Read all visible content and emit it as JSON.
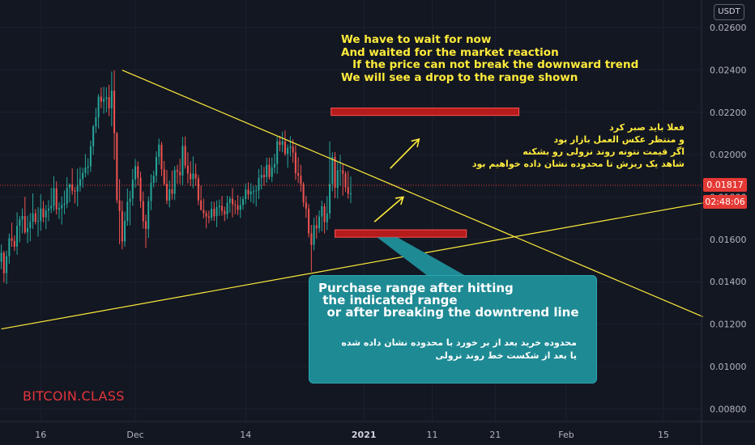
{
  "quote_currency": "USDT",
  "watermark": "BITCOIN.CLASS",
  "last_price": "0.01817",
  "countdown": "02:48:06",
  "notes": {
    "english": "We have to wait for now\nAnd waited for the market reaction\n   If the price can not break the downward trend\nWe will see a drop to the range shown",
    "persian": "فعلا باید صبر کرد\nو منتظر عکس العمل بازار بود\nاگر قیمت نتونه روند نزولی رو بشکنه\nشاهد یک ریزش تا محدوده نشان داده خواهیم بود",
    "callout_english": "Purchase range after hitting\n the indicated range\n  or after breaking the downtrend line",
    "callout_persian": "محدوده خرید بعد از بر خورد با محدوده نشان داده شده\nیا بعد از شکست خط روند نزولی"
  },
  "chart_data": {
    "type": "candlestick",
    "price_axis": {
      "range": [
        0.0074,
        0.0273
      ],
      "ticks": [
        "0.00800",
        "0.01000",
        "0.01200",
        "0.01400",
        "0.01600",
        "0.01800",
        "0.02000",
        "0.02200",
        "0.02400",
        "0.02600"
      ]
    },
    "time_axis": {
      "labels": [
        {
          "text": "16",
          "bar": 15
        },
        {
          "text": "Dec",
          "bar": 51
        },
        {
          "text": "14",
          "bar": 93
        },
        {
          "text": "2021",
          "bar": 138
        },
        {
          "text": "11",
          "bar": 164
        },
        {
          "text": "21",
          "bar": 188
        },
        {
          "text": "Feb",
          "bar": 215
        },
        {
          "text": "15",
          "bar": 252
        }
      ],
      "bar_count_visible": 267,
      "last_bar": 133
    },
    "colors": {
      "up": "#26a69a",
      "down": "#ef5350",
      "trendline": "#ffeb3b",
      "zone_fill": "#b71c1c",
      "zone_border": "#ff5252",
      "arrow": "#ffeb3b",
      "current_price_line": "#e53935"
    },
    "candles": [
      [
        0.01494,
        0.01576,
        0.01459,
        0.01537
      ],
      [
        0.01537,
        0.01546,
        0.01396,
        0.0144
      ],
      [
        0.0144,
        0.01547,
        0.01389,
        0.01521
      ],
      [
        0.01521,
        0.01628,
        0.01485,
        0.01605
      ],
      [
        0.01605,
        0.01679,
        0.01565,
        0.01593
      ],
      [
        0.01593,
        0.01618,
        0.01545,
        0.01565
      ],
      [
        0.01565,
        0.01728,
        0.01528,
        0.01664
      ],
      [
        0.01664,
        0.0171,
        0.01586,
        0.01694
      ],
      [
        0.01694,
        0.01746,
        0.01628,
        0.0171
      ],
      [
        0.0171,
        0.01801,
        0.01625,
        0.01633
      ],
      [
        0.01633,
        0.01712,
        0.01582,
        0.01654
      ],
      [
        0.01654,
        0.01724,
        0.01591,
        0.01683
      ],
      [
        0.01683,
        0.01817,
        0.01649,
        0.01723
      ],
      [
        0.01723,
        0.01744,
        0.01671,
        0.01683
      ],
      [
        0.01683,
        0.01752,
        0.01613,
        0.01686
      ],
      [
        0.01686,
        0.01813,
        0.01641,
        0.01746
      ],
      [
        0.01746,
        0.01781,
        0.0168,
        0.01704
      ],
      [
        0.01704,
        0.01762,
        0.01648,
        0.01736
      ],
      [
        0.01736,
        0.01785,
        0.01686,
        0.01745
      ],
      [
        0.01745,
        0.01844,
        0.01724,
        0.01758
      ],
      [
        0.01758,
        0.01898,
        0.01733,
        0.01841
      ],
      [
        0.01841,
        0.01874,
        0.01717,
        0.01741
      ],
      [
        0.01741,
        0.01776,
        0.01696,
        0.01747
      ],
      [
        0.01747,
        0.01803,
        0.0167,
        0.01762
      ],
      [
        0.01762,
        0.0183,
        0.01719,
        0.01768
      ],
      [
        0.01768,
        0.01894,
        0.01747,
        0.01843
      ],
      [
        0.01843,
        0.01865,
        0.01775,
        0.01858
      ],
      [
        0.01858,
        0.01935,
        0.0181,
        0.01829
      ],
      [
        0.01829,
        0.01847,
        0.0177,
        0.01826
      ],
      [
        0.01826,
        0.01934,
        0.01755,
        0.01852
      ],
      [
        0.01852,
        0.01941,
        0.01826,
        0.01885
      ],
      [
        0.01885,
        0.01938,
        0.01844,
        0.01913
      ],
      [
        0.01913,
        0.02003,
        0.01893,
        0.01939
      ],
      [
        0.01939,
        0.01983,
        0.01904,
        0.01945
      ],
      [
        0.01945,
        0.02067,
        0.01918,
        0.02039
      ],
      [
        0.02039,
        0.02141,
        0.01999,
        0.02133
      ],
      [
        0.02133,
        0.02221,
        0.02102,
        0.02176
      ],
      [
        0.02176,
        0.02286,
        0.02123,
        0.02274
      ],
      [
        0.02274,
        0.02317,
        0.02219,
        0.0225
      ],
      [
        0.0225,
        0.0232,
        0.02194,
        0.02263
      ],
      [
        0.02263,
        0.02318,
        0.02201,
        0.02271
      ],
      [
        0.02271,
        0.0233,
        0.02182,
        0.02219
      ],
      [
        0.02219,
        0.02392,
        0.02133,
        0.02302
      ],
      [
        0.02302,
        0.02398,
        0.01976,
        0.02101
      ],
      [
        0.02101,
        0.02107,
        0.0177,
        0.01785
      ],
      [
        0.01785,
        0.01884,
        0.01577,
        0.01734
      ],
      [
        0.01734,
        0.01782,
        0.01553,
        0.0159
      ],
      [
        0.0159,
        0.0173,
        0.01566,
        0.01687
      ],
      [
        0.01687,
        0.0184,
        0.01664,
        0.01777
      ],
      [
        0.01777,
        0.01829,
        0.01666,
        0.01792
      ],
      [
        0.01792,
        0.01932,
        0.01759,
        0.01882
      ],
      [
        0.01882,
        0.01979,
        0.01843,
        0.01945
      ],
      [
        0.01945,
        0.01968,
        0.01855,
        0.01891
      ],
      [
        0.01891,
        0.0192,
        0.01749,
        0.01781
      ],
      [
        0.01781,
        0.01826,
        0.01651,
        0.01685
      ],
      [
        0.01685,
        0.01717,
        0.01559,
        0.01649
      ],
      [
        0.01649,
        0.01803,
        0.01607,
        0.01781
      ],
      [
        0.01781,
        0.01907,
        0.01738,
        0.01867
      ],
      [
        0.01867,
        0.01924,
        0.01845,
        0.01901
      ],
      [
        0.01901,
        0.02016,
        0.01868,
        0.0199
      ],
      [
        0.0199,
        0.02076,
        0.01953,
        0.02047
      ],
      [
        0.02047,
        0.02061,
        0.01899,
        0.01931
      ],
      [
        0.01931,
        0.0197,
        0.01854,
        0.01862
      ],
      [
        0.01862,
        0.01927,
        0.01766,
        0.01783
      ],
      [
        0.01783,
        0.01878,
        0.01751,
        0.01837
      ],
      [
        0.01837,
        0.01925,
        0.01788,
        0.01815
      ],
      [
        0.01815,
        0.01945,
        0.01785,
        0.01927
      ],
      [
        0.01927,
        0.01952,
        0.01862,
        0.01919
      ],
      [
        0.01919,
        0.0198,
        0.01861,
        0.01902
      ],
      [
        0.01902,
        0.02084,
        0.01855,
        0.02041
      ],
      [
        0.02041,
        0.02086,
        0.01934,
        0.01948
      ],
      [
        0.01948,
        0.02011,
        0.01865,
        0.01911
      ],
      [
        0.01911,
        0.01969,
        0.01852,
        0.01884
      ],
      [
        0.01884,
        0.01992,
        0.01842,
        0.0191
      ],
      [
        0.0191,
        0.01958,
        0.01854,
        0.01888
      ],
      [
        0.01888,
        0.01904,
        0.01761,
        0.01784
      ],
      [
        0.01784,
        0.01854,
        0.01737,
        0.01739
      ],
      [
        0.01739,
        0.01792,
        0.01699,
        0.01724
      ],
      [
        0.01724,
        0.01736,
        0.01652,
        0.01708
      ],
      [
        0.01708,
        0.01736,
        0.01676,
        0.01702
      ],
      [
        0.01702,
        0.01779,
        0.01688,
        0.01744
      ],
      [
        0.01744,
        0.01778,
        0.01687,
        0.01709
      ],
      [
        0.01709,
        0.01784,
        0.01658,
        0.01752
      ],
      [
        0.01752,
        0.01788,
        0.01711,
        0.01758
      ],
      [
        0.01758,
        0.01805,
        0.01712,
        0.01734
      ],
      [
        0.01734,
        0.01754,
        0.01686,
        0.01719
      ],
      [
        0.01719,
        0.01806,
        0.01696,
        0.01773
      ],
      [
        0.01773,
        0.01803,
        0.01726,
        0.01792
      ],
      [
        0.01792,
        0.01842,
        0.01704,
        0.01765
      ],
      [
        0.01765,
        0.01784,
        0.01719,
        0.01761
      ],
      [
        0.01761,
        0.01809,
        0.01715,
        0.01739
      ],
      [
        0.01739,
        0.01801,
        0.01701,
        0.01762
      ],
      [
        0.01762,
        0.01804,
        0.0174,
        0.0179
      ],
      [
        0.0179,
        0.01864,
        0.01766,
        0.01835
      ],
      [
        0.01835,
        0.01869,
        0.01788,
        0.01812
      ],
      [
        0.01812,
        0.01865,
        0.01776,
        0.01826
      ],
      [
        0.01826,
        0.01853,
        0.01769,
        0.01827
      ],
      [
        0.01827,
        0.01855,
        0.01755,
        0.01831
      ],
      [
        0.01831,
        0.01933,
        0.0179,
        0.0189
      ],
      [
        0.0189,
        0.01951,
        0.01836,
        0.01904
      ],
      [
        0.01904,
        0.01942,
        0.01853,
        0.01894
      ],
      [
        0.01894,
        0.01985,
        0.01867,
        0.01952
      ],
      [
        0.01952,
        0.01986,
        0.01882,
        0.01895
      ],
      [
        0.01895,
        0.01986,
        0.01871,
        0.01939
      ],
      [
        0.01939,
        0.02004,
        0.01912,
        0.01956
      ],
      [
        0.01956,
        0.02084,
        0.01909,
        0.02063
      ],
      [
        0.02063,
        0.02089,
        0.02016,
        0.02046
      ],
      [
        0.02046,
        0.02108,
        0.02011,
        0.02063
      ],
      [
        0.02063,
        0.02115,
        0.01994,
        0.02003
      ],
      [
        0.02003,
        0.02048,
        0.01938,
        0.02031
      ],
      [
        0.02031,
        0.02087,
        0.01991,
        0.02038
      ],
      [
        0.02038,
        0.02073,
        0.01963,
        0.0201
      ],
      [
        0.0201,
        0.02046,
        0.01881,
        0.01913
      ],
      [
        0.01913,
        0.01988,
        0.01866,
        0.01901
      ],
      [
        0.01901,
        0.01952,
        0.01825,
        0.01861
      ],
      [
        0.01861,
        0.01871,
        0.01753,
        0.01774
      ],
      [
        0.01774,
        0.01806,
        0.01702,
        0.01745
      ],
      [
        0.01745,
        0.01767,
        0.01609,
        0.01628
      ],
      [
        0.01628,
        0.01668,
        0.01448,
        0.01574
      ],
      [
        0.01574,
        0.01703,
        0.01548,
        0.01667
      ],
      [
        0.01667,
        0.01714,
        0.01604,
        0.01652
      ],
      [
        0.01652,
        0.01737,
        0.01632,
        0.01708
      ],
      [
        0.01708,
        0.01783,
        0.01638,
        0.01756
      ],
      [
        0.01756,
        0.01771,
        0.01628,
        0.01681
      ],
      [
        0.01681,
        0.01804,
        0.01644,
        0.01722
      ],
      [
        0.01722,
        0.02062,
        0.01696,
        0.01862
      ],
      [
        0.01862,
        0.02011,
        0.01827,
        0.01989
      ],
      [
        0.01989,
        0.02012,
        0.01794,
        0.01843
      ],
      [
        0.01843,
        0.01966,
        0.01792,
        0.01926
      ],
      [
        0.01926,
        0.01999,
        0.01852,
        0.01926
      ],
      [
        0.01926,
        0.01959,
        0.01807,
        0.0191
      ],
      [
        0.0191,
        0.01921,
        0.01823,
        0.01846
      ],
      [
        0.01846,
        0.01922,
        0.01792,
        0.01816
      ],
      [
        0.01816,
        0.01897,
        0.01772,
        0.01817
      ]
    ],
    "trendlines": [
      {
        "name": "descending_resistance",
        "from": {
          "bar": 46,
          "price": 0.02399
        },
        "to": {
          "bar": 267,
          "price": 0.01235
        }
      },
      {
        "name": "ascending_support",
        "from": {
          "bar": 0,
          "price": 0.01177
        },
        "to": {
          "bar": 267,
          "price": 0.01772
        }
      }
    ],
    "zones": [
      {
        "name": "upper_target_zone",
        "bars": [
          125.5,
          197
        ],
        "price": [
          0.02185,
          0.0222
        ]
      },
      {
        "name": "purchase_zone",
        "bars": [
          127,
          177
        ],
        "price": [
          0.0161,
          0.01645
        ]
      }
    ],
    "arrows": [
      {
        "name": "upward_arrow_upper",
        "from": {
          "bar": 148,
          "price": 0.01935
        },
        "to": {
          "bar": 159,
          "price": 0.02073
        }
      },
      {
        "name": "upward_arrow_lower",
        "from": {
          "bar": 142,
          "price": 0.01683
        },
        "to": {
          "bar": 153,
          "price": 0.018
        }
      }
    ]
  }
}
